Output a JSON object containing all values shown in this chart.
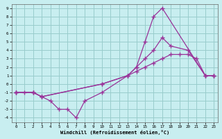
{
  "xlabel": "Windchill (Refroidissement éolien,°C)",
  "bg_color": "#c8eef0",
  "grid_color": "#99cccc",
  "line_color": "#993399",
  "xlim": [
    -0.5,
    23.5
  ],
  "ylim": [
    -4.5,
    9.5
  ],
  "xticks": [
    0,
    1,
    2,
    3,
    4,
    5,
    6,
    7,
    8,
    9,
    10,
    11,
    12,
    13,
    14,
    15,
    16,
    17,
    18,
    19,
    20,
    21,
    22,
    23
  ],
  "yticks": [
    -4,
    -3,
    -2,
    -1,
    0,
    1,
    2,
    3,
    4,
    5,
    6,
    7,
    8,
    9
  ],
  "line1_x": [
    0,
    1,
    2,
    3,
    4,
    5,
    6,
    7,
    8,
    10,
    13,
    14,
    15,
    16,
    17,
    22,
    23
  ],
  "line1_y": [
    -1,
    -1,
    -1,
    -1.5,
    -2,
    -3,
    -3,
    -4,
    -2,
    -1,
    1,
    2,
    5,
    8,
    9,
    1,
    1
  ],
  "line2_x": [
    0,
    2,
    3,
    10,
    13,
    14,
    15,
    16,
    17,
    18,
    20,
    22,
    23
  ],
  "line2_y": [
    -1,
    -1,
    -1.5,
    0,
    1,
    2,
    3,
    4,
    5.5,
    4.5,
    4,
    1,
    1
  ],
  "line3_x": [
    0,
    2,
    3,
    10,
    13,
    14,
    15,
    16,
    17,
    18,
    19,
    20,
    21,
    22,
    23
  ],
  "line3_y": [
    -1,
    -1,
    -1.5,
    0,
    1,
    1.5,
    2,
    2.5,
    3,
    3.5,
    3.5,
    3.5,
    3,
    1,
    1
  ]
}
